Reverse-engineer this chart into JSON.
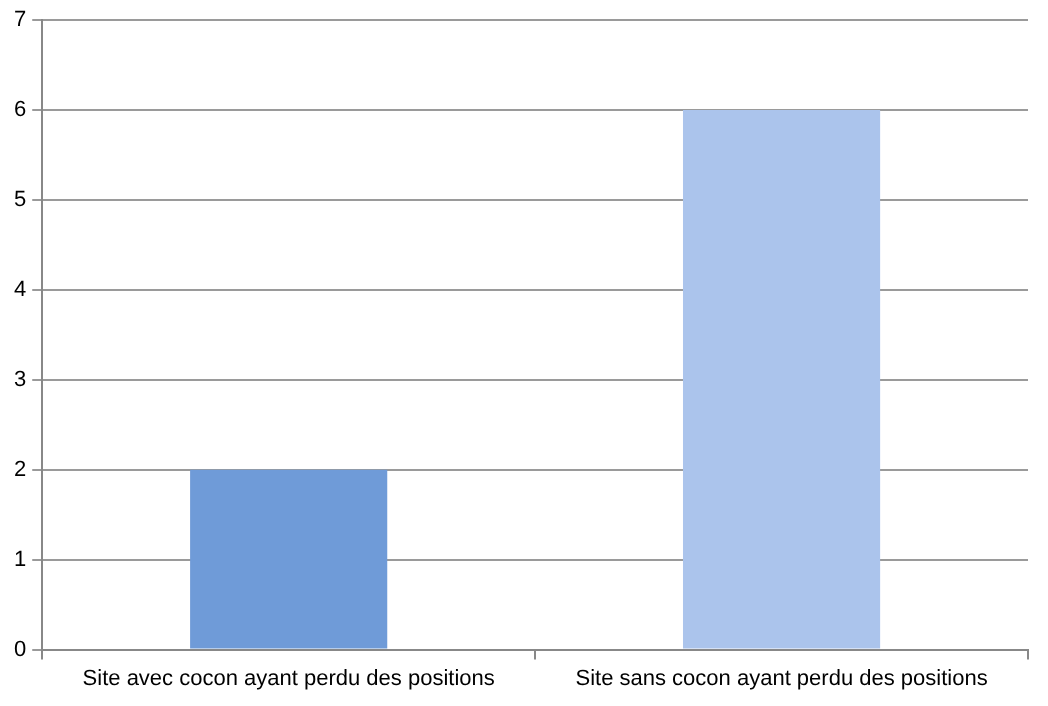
{
  "chart_data": {
    "type": "bar",
    "categories": [
      "Site avec cocon ayant perdu des positions",
      "Site sans cocon ayant perdu des positions"
    ],
    "values": [
      2,
      6
    ],
    "colors": [
      "#6f9bd8",
      "#abc4ec"
    ],
    "ylim": [
      0,
      7
    ],
    "yticks": [
      0,
      1,
      2,
      3,
      4,
      5,
      6,
      7
    ],
    "grid": "y",
    "legend": false
  }
}
